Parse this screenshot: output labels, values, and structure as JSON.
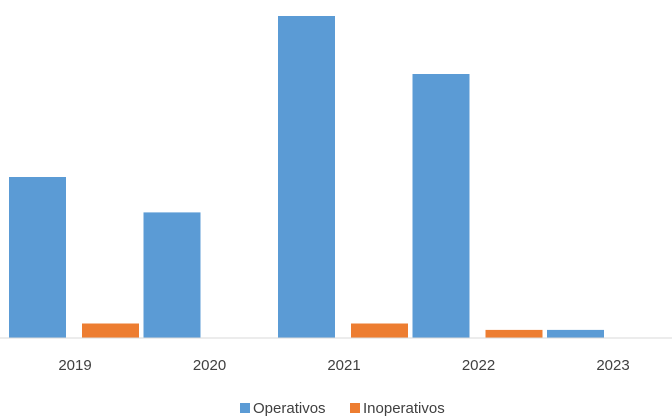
{
  "chart_data": {
    "type": "bar",
    "categories": [
      "2019",
      "2020",
      "2021",
      "2022",
      "2023"
    ],
    "series": [
      {
        "name": "Operativos",
        "color": "#5B9BD5",
        "values": [
          50,
          39,
          100,
          82,
          2.5
        ]
      },
      {
        "name": "Inoperativos",
        "color": "#ED7D31",
        "values": [
          4.5,
          0,
          4.5,
          2.5,
          0
        ]
      }
    ],
    "title": "",
    "xlabel": "",
    "ylabel": "",
    "ylim": [
      0,
      100
    ],
    "grid": false,
    "legend_position": "bottom"
  }
}
